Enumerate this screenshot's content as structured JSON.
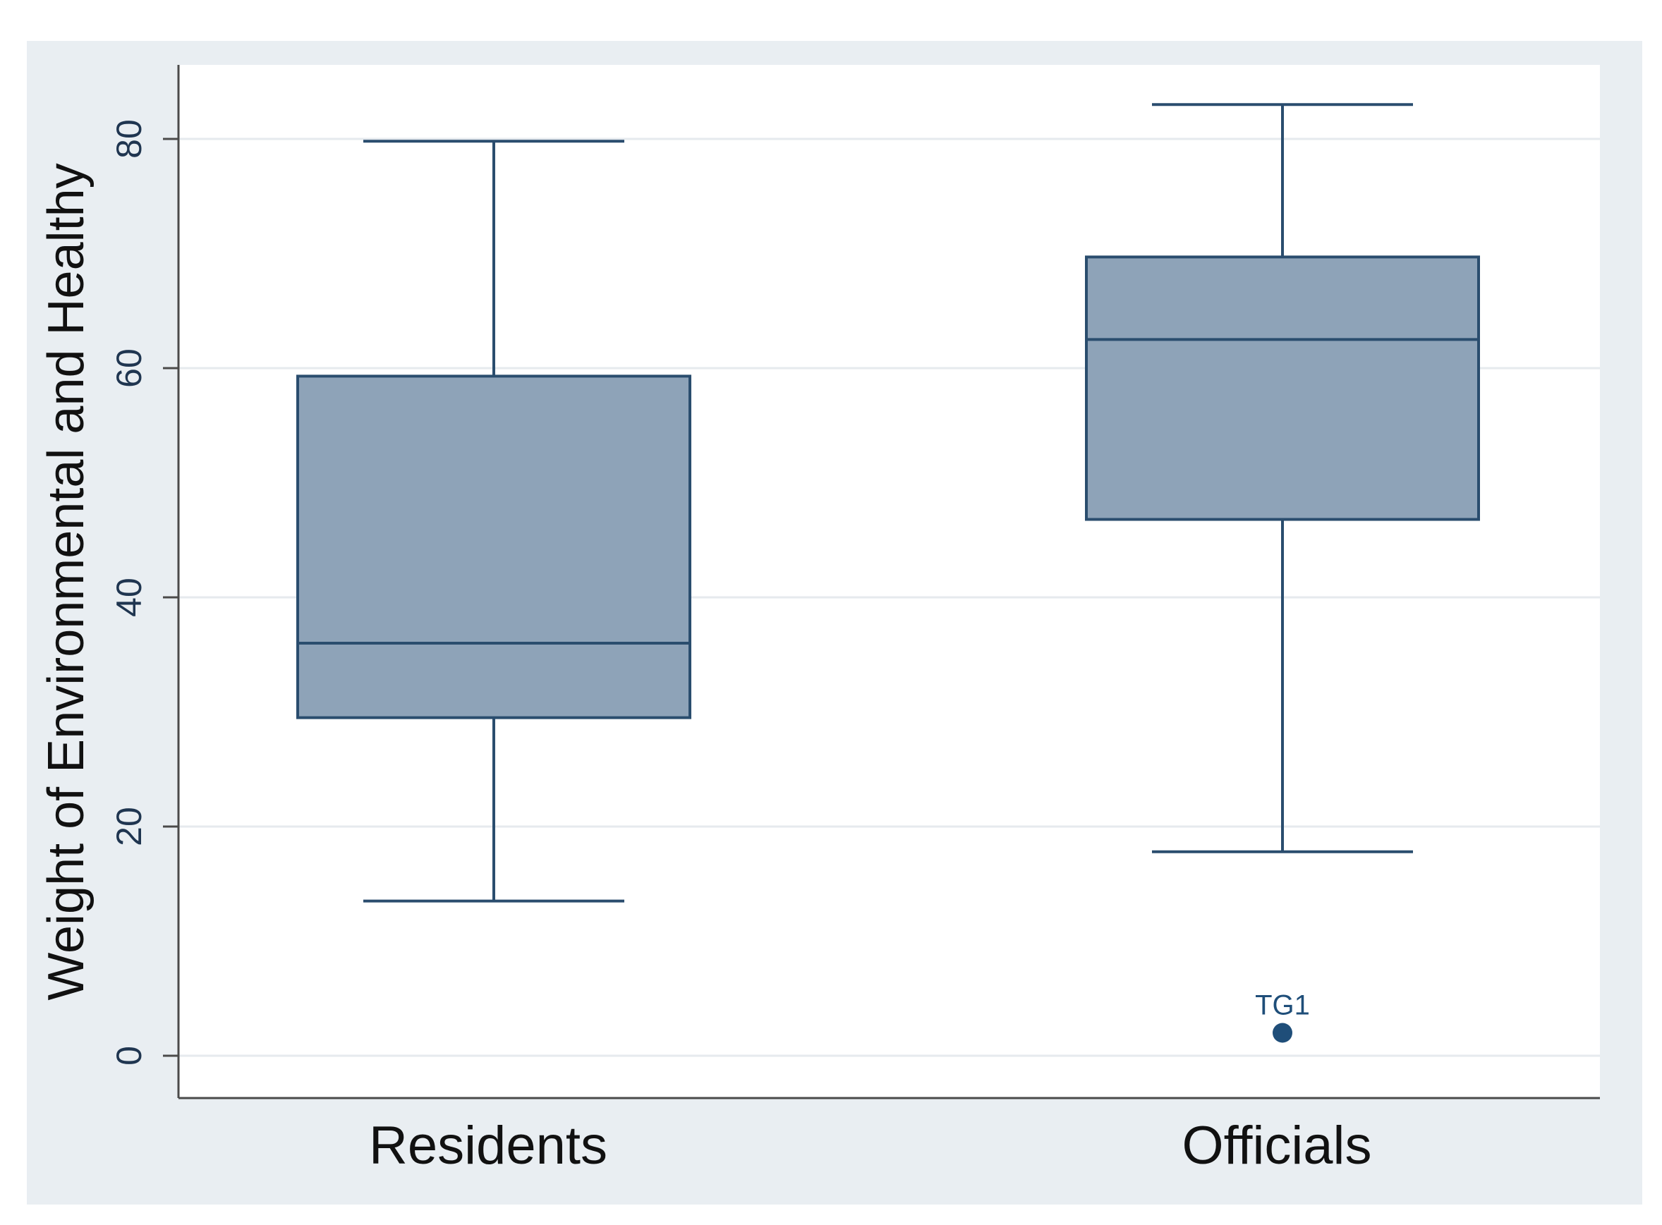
{
  "chart_data": {
    "type": "box",
    "title": "",
    "xlabel": "",
    "ylabel": "Weight of Environmental and Healthy",
    "ylim": [
      -3.5,
      87
    ],
    "yticks": [
      0,
      20,
      40,
      60,
      80
    ],
    "ytick_labels": [
      "0",
      "20",
      "40",
      "60",
      "80"
    ],
    "grid": true,
    "legend": "none",
    "categories": [
      "Residents",
      "Officials"
    ],
    "boxes": [
      {
        "category": "Residents",
        "whisker_low": 13.5,
        "q1": 29.5,
        "median": 36,
        "q3": 59.3,
        "whisker_high": 79.8,
        "outliers": []
      },
      {
        "category": "Officials",
        "whisker_low": 17.8,
        "q1": 46.8,
        "median": 62.5,
        "q3": 69.7,
        "whisker_high": 83,
        "outliers": [
          {
            "value": 2,
            "label": "TG1"
          }
        ]
      }
    ],
    "colors": {
      "background": "#e9eef2",
      "plot_background": "#ffffff",
      "box_fill": "#8ea3b8",
      "box_stroke": "#2a4d6e",
      "grid": "#e6eaee",
      "axis": "#4a4a4a",
      "outlier": "#1f4e79"
    }
  }
}
